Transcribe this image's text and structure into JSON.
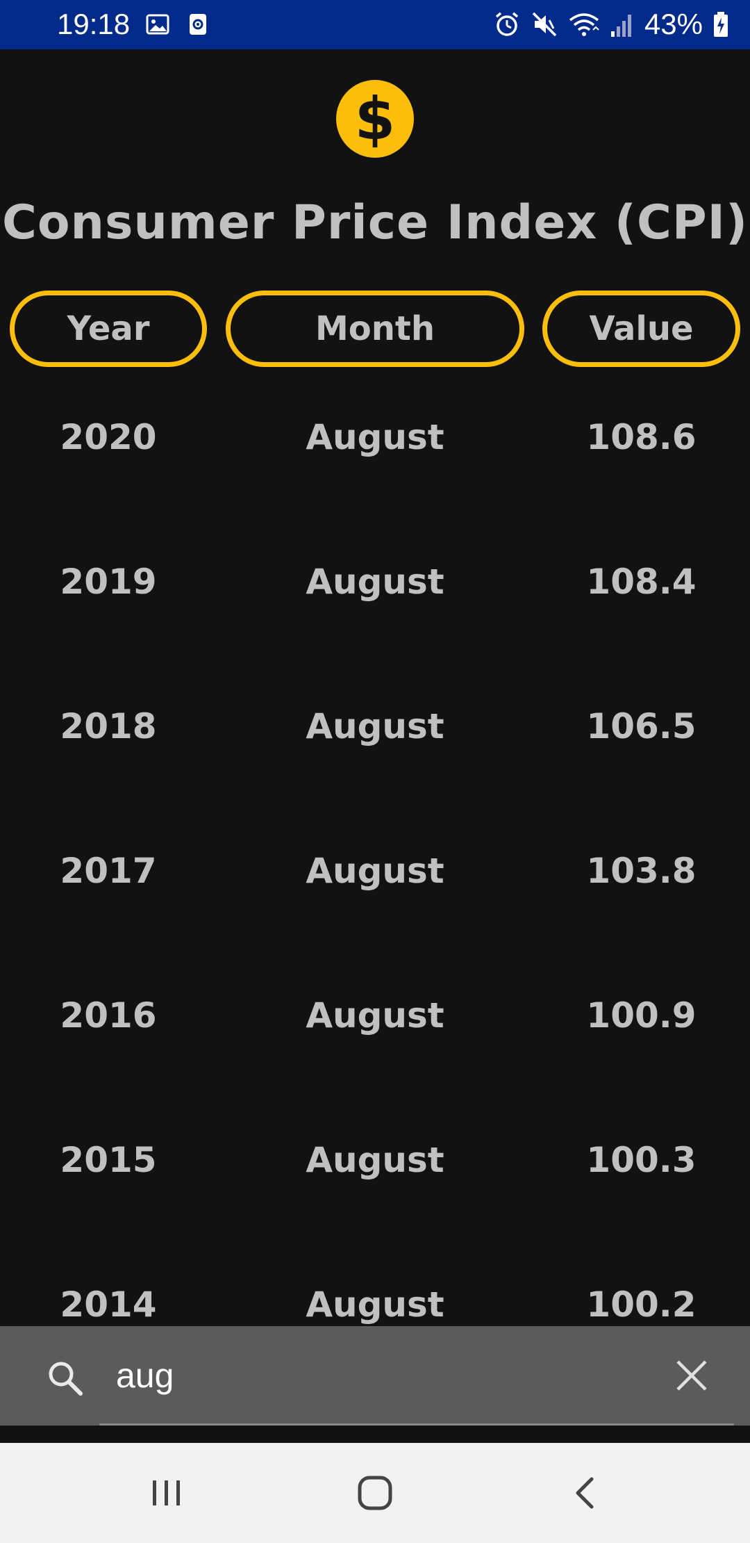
{
  "status_bar": {
    "time": "19:18",
    "battery": "43%",
    "left_icons": [
      "image-icon",
      "screen-record-icon"
    ],
    "right_icons": [
      "alarm-icon",
      "mute-icon",
      "wifi-icon",
      "signal-icon",
      "battery-charging-icon"
    ],
    "background": "#012a8a"
  },
  "app": {
    "logo_glyph": "$",
    "title": "Consumer Price Index (CPI)",
    "accent_color": "#fbbf0b",
    "text_color": "#c0c0c0",
    "background": "#121212"
  },
  "table": {
    "columns": [
      "Year",
      "Month",
      "Value"
    ],
    "rows": [
      {
        "year": "2020",
        "month": "August",
        "value": "108.6"
      },
      {
        "year": "2019",
        "month": "August",
        "value": "108.4"
      },
      {
        "year": "2018",
        "month": "August",
        "value": "106.5"
      },
      {
        "year": "2017",
        "month": "August",
        "value": "103.8"
      },
      {
        "year": "2016",
        "month": "August",
        "value": "100.9"
      },
      {
        "year": "2015",
        "month": "August",
        "value": "100.3"
      },
      {
        "year": "2014",
        "month": "August",
        "value": "100.2"
      }
    ]
  },
  "search": {
    "value": "aug",
    "icon": "search-icon",
    "clear_icon": "close-icon"
  },
  "nav_bar": {
    "buttons": [
      "recents-icon",
      "home-icon",
      "back-icon"
    ]
  }
}
